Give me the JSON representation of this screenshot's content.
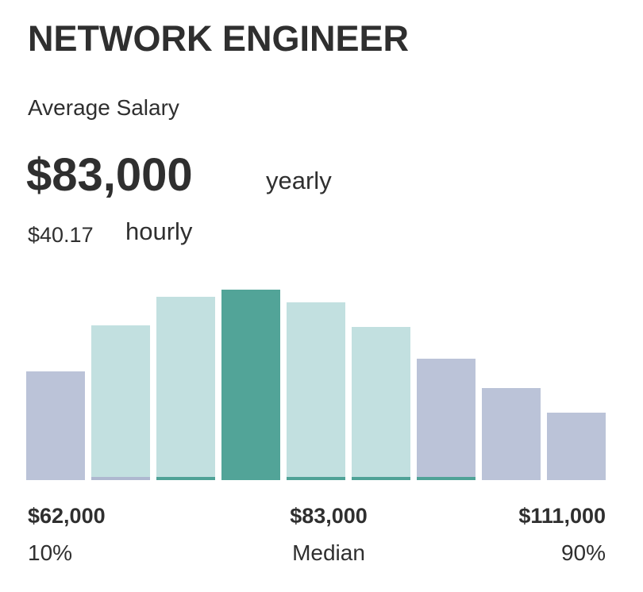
{
  "header": {
    "title": "NETWORK ENGINEER",
    "subtitle": "Average Salary",
    "salary": "$83,000",
    "salary_unit": "yearly",
    "hourly": "$40.17",
    "hourly_unit": "hourly"
  },
  "chart_data": {
    "type": "bar",
    "values": [
      137,
      195,
      231,
      240,
      224,
      193,
      153,
      116,
      85
    ],
    "colors": [
      "#bbc3d8",
      "#c2e0e0",
      "#c2e0e0",
      "#52a498",
      "#c2e0e0",
      "#c2e0e0",
      "#bbc3d8",
      "#bbc3d8",
      "#bbc3d8"
    ],
    "base_colors": [
      null,
      "#aeb8d0",
      "#4fa297",
      null,
      "#4fa297",
      "#4fa297",
      "#4fa297",
      null,
      null
    ],
    "ylim": [
      0,
      250
    ],
    "markers": [
      {
        "label": "$62,000",
        "caption": "10%"
      },
      {
        "label": "$83,000",
        "caption": "Median"
      },
      {
        "label": "$111,000",
        "caption": "90%"
      }
    ]
  }
}
